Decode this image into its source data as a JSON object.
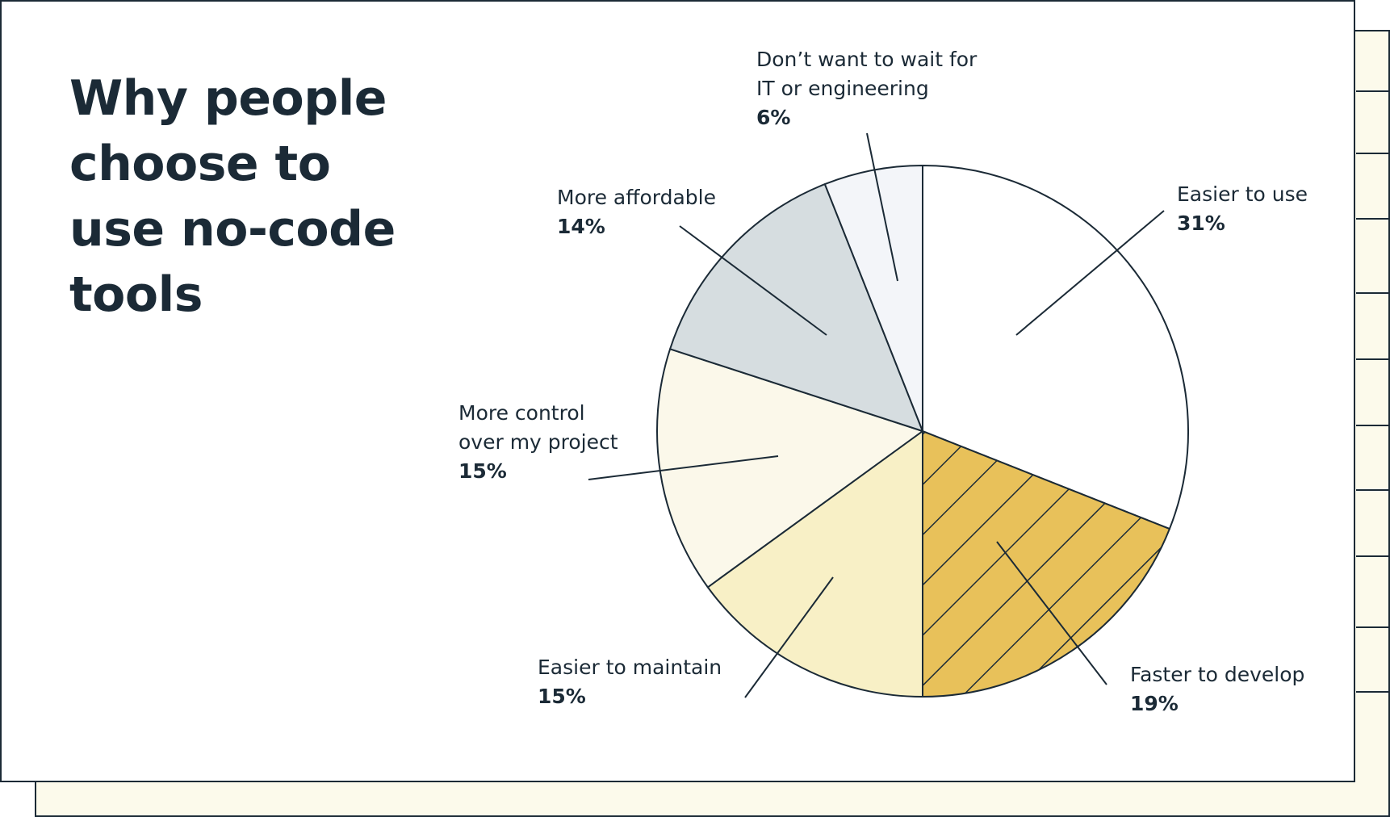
{
  "chart_data": {
    "type": "pie",
    "title": "Why people choose to use no-code tools",
    "categories": [
      "Easier to use",
      "Faster to develop",
      "Easier to maintain",
      "More control over my project",
      "More affordable",
      "Don’t want to wait for IT or engineering"
    ],
    "values": [
      31,
      19,
      15,
      15,
      14,
      6
    ],
    "value_labels": [
      "31%",
      "19%",
      "15%",
      "15%",
      "14%",
      "6%"
    ],
    "colors": [
      "#ffffff",
      "#e8c15a",
      "#f8f0c6",
      "#fbf8ea",
      "#d6dde0",
      "#f3f5f9"
    ],
    "hatched": [
      false,
      true,
      false,
      false,
      false,
      false
    ]
  }
}
